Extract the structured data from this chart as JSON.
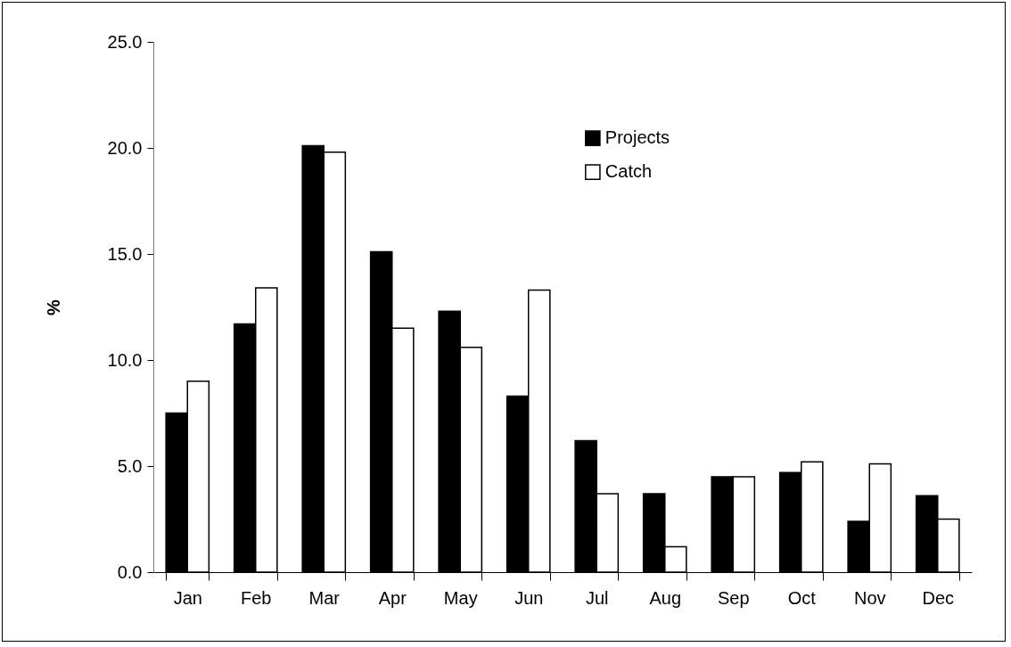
{
  "chart_data": {
    "type": "bar",
    "ylabel": "%",
    "categories": [
      "Jan",
      "Feb",
      "Mar",
      "Apr",
      "May",
      "Jun",
      "Jul",
      "Aug",
      "Sep",
      "Oct",
      "Nov",
      "Dec"
    ],
    "series": [
      {
        "name": "Projects",
        "color": "#000000",
        "values": [
          7.5,
          11.7,
          20.1,
          15.1,
          12.3,
          8.3,
          6.2,
          3.7,
          4.5,
          4.7,
          2.4,
          3.6
        ]
      },
      {
        "name": "Catch",
        "color": "#ffffff",
        "values": [
          9.0,
          13.4,
          19.8,
          11.5,
          10.6,
          13.3,
          3.7,
          1.2,
          4.5,
          5.2,
          5.1,
          2.5
        ]
      }
    ],
    "ylim": [
      0,
      25
    ],
    "yticks": [
      {
        "value": 0,
        "label": "0.0"
      },
      {
        "value": 5,
        "label": "5.0"
      },
      {
        "value": 10,
        "label": "10.0"
      },
      {
        "value": 15,
        "label": "15.0"
      },
      {
        "value": 20,
        "label": "20.0"
      },
      {
        "value": 25,
        "label": "25.0"
      }
    ],
    "grid": false,
    "legend": "top"
  }
}
